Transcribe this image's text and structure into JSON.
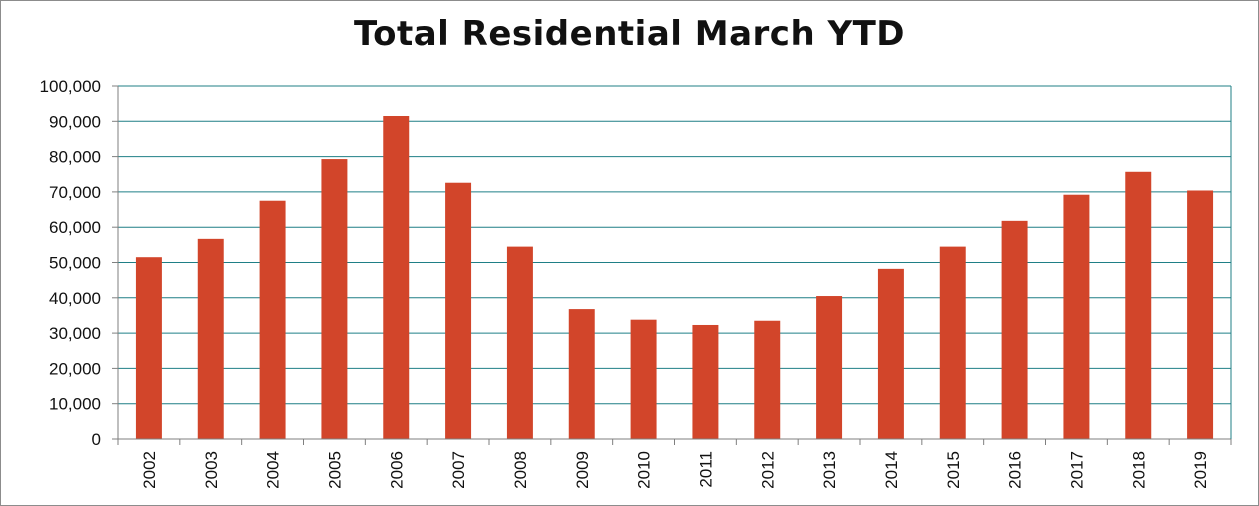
{
  "chart_data": {
    "type": "bar",
    "title": "Total Residential March YTD",
    "xlabel": "",
    "ylabel": "",
    "categories": [
      "2002",
      "2003",
      "2004",
      "2005",
      "2006",
      "2007",
      "2008",
      "2009",
      "2010",
      "2011",
      "2012",
      "2013",
      "2014",
      "2015",
      "2016",
      "2017",
      "2018",
      "2019"
    ],
    "values": [
      51500,
      56700,
      67500,
      79300,
      91500,
      72600,
      54500,
      36800,
      33800,
      32300,
      33500,
      40500,
      48200,
      54500,
      61800,
      69200,
      75700,
      70400
    ],
    "ylim": [
      0,
      100000
    ],
    "yticks": [
      "0",
      "10,000",
      "20,000",
      "30,000",
      "40,000",
      "50,000",
      "60,000",
      "70,000",
      "80,000",
      "90,000",
      "100,000"
    ],
    "grid": true,
    "legend": "none",
    "colors": {
      "bar": "#d2452a",
      "grid": "#1f7f86",
      "axis": "#7f7f7f"
    }
  }
}
